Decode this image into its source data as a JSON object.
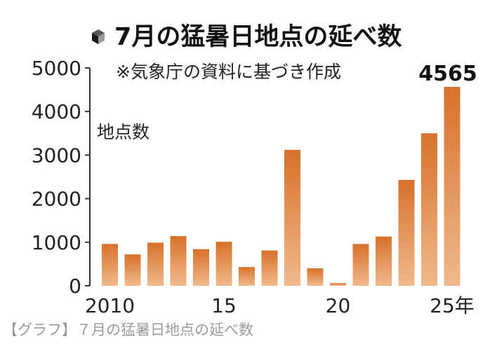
{
  "caption": "【グラフ】７月の猛暑日地点の延べ数",
  "chart_data": {
    "type": "bar",
    "title": "7月の猛暑日地点の延べ数",
    "note": "※気象庁の資料に基づき作成",
    "ylabel": "地点数",
    "ylim": [
      0,
      5000
    ],
    "yticks": [
      "0",
      "1000",
      "2000",
      "3000",
      "4000",
      "5000"
    ],
    "categories": [
      "2010",
      "2011",
      "2012",
      "2013",
      "2014",
      "2015",
      "2016",
      "2017",
      "2018",
      "2019",
      "2020",
      "2021",
      "2022",
      "2023",
      "2024",
      "2025"
    ],
    "xtick_labels": [
      "2010",
      "",
      "",
      "",
      "",
      "15",
      "",
      "",
      "",
      "",
      "20",
      "",
      "",
      "",
      "",
      "25年"
    ],
    "values": [
      960,
      720,
      990,
      1140,
      840,
      1010,
      430,
      810,
      3120,
      400,
      60,
      960,
      1130,
      2430,
      3500,
      4565
    ],
    "value_labels": [
      "",
      "",
      "",
      "",
      "",
      "",
      "",
      "",
      "",
      "",
      "",
      "",
      "",
      "",
      "",
      "4565"
    ],
    "bar_color": "#d7712a",
    "bar_color_light": "#f0b98c",
    "grid": false
  }
}
